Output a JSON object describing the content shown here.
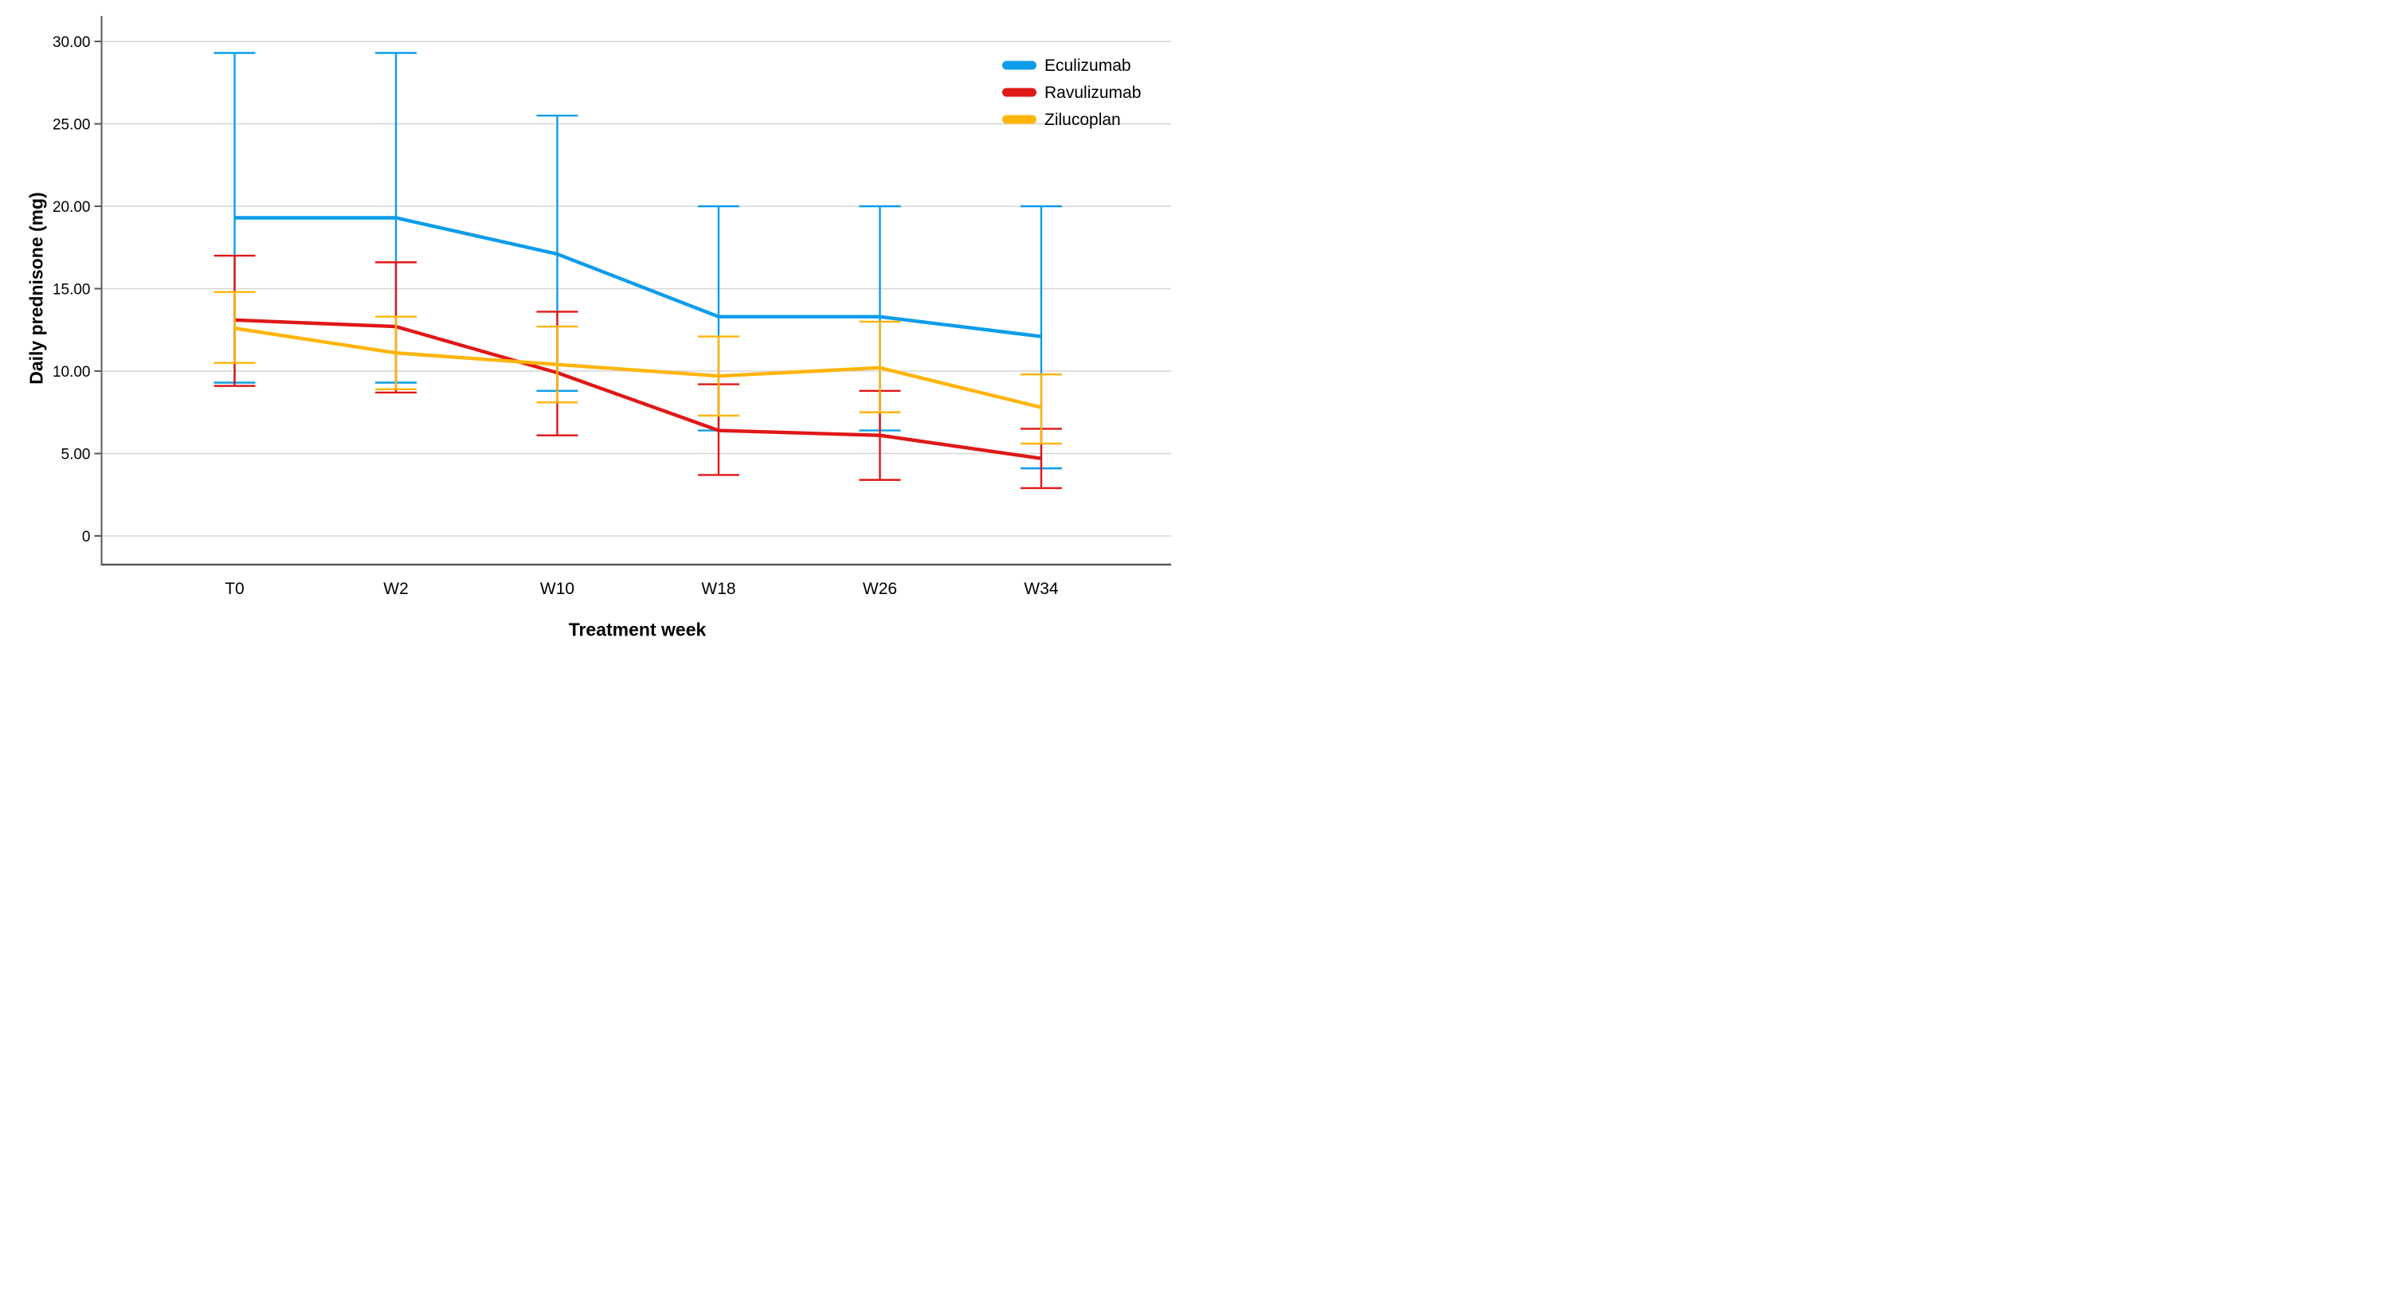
{
  "chart_data": {
    "type": "line",
    "title": "",
    "xlabel": "Treatment week",
    "ylabel": "Daily prednisone (mg)",
    "categories": [
      "T0",
      "W2",
      "W10",
      "W18",
      "W26",
      "W34"
    ],
    "y_axis": {
      "tick_labels": [
        "30.00",
        "25.00",
        "20.00",
        "15.00",
        "10.00",
        "5.00",
        "0"
      ],
      "tick_values": [
        30,
        25,
        20,
        15,
        10,
        5,
        0
      ],
      "range": [
        0,
        30
      ]
    },
    "grid": "horizontal",
    "error_bars": true,
    "legend_position": "top-right-inside",
    "colors": {
      "gridline": "#D5D5D5",
      "axis": "#595959",
      "text": "#000000"
    },
    "series": [
      {
        "name": "Eculizumab",
        "color": "#0C9CEA",
        "values": [
          19.3,
          19.3,
          17.1,
          13.3,
          13.3,
          12.1
        ],
        "upper": [
          29.3,
          29.3,
          25.5,
          20.0,
          20.0,
          20.0
        ],
        "lower": [
          9.3,
          9.3,
          8.8,
          6.4,
          6.4,
          4.1
        ]
      },
      {
        "name": "Ravulizumab",
        "color": "#E01717",
        "values": [
          13.1,
          12.7,
          9.9,
          6.4,
          6.1,
          4.7
        ],
        "upper": [
          17.0,
          16.6,
          13.6,
          9.2,
          8.8,
          6.5
        ],
        "lower": [
          9.1,
          8.7,
          6.1,
          3.7,
          3.4,
          2.9
        ]
      },
      {
        "name": "Zilucoplan",
        "color": "#FFB408",
        "values": [
          12.6,
          11.1,
          10.4,
          9.7,
          10.2,
          7.8
        ],
        "upper": [
          14.8,
          13.3,
          12.7,
          12.1,
          13.0,
          9.8
        ],
        "lower": [
          10.5,
          8.9,
          8.1,
          7.3,
          7.5,
          5.6
        ]
      }
    ]
  }
}
